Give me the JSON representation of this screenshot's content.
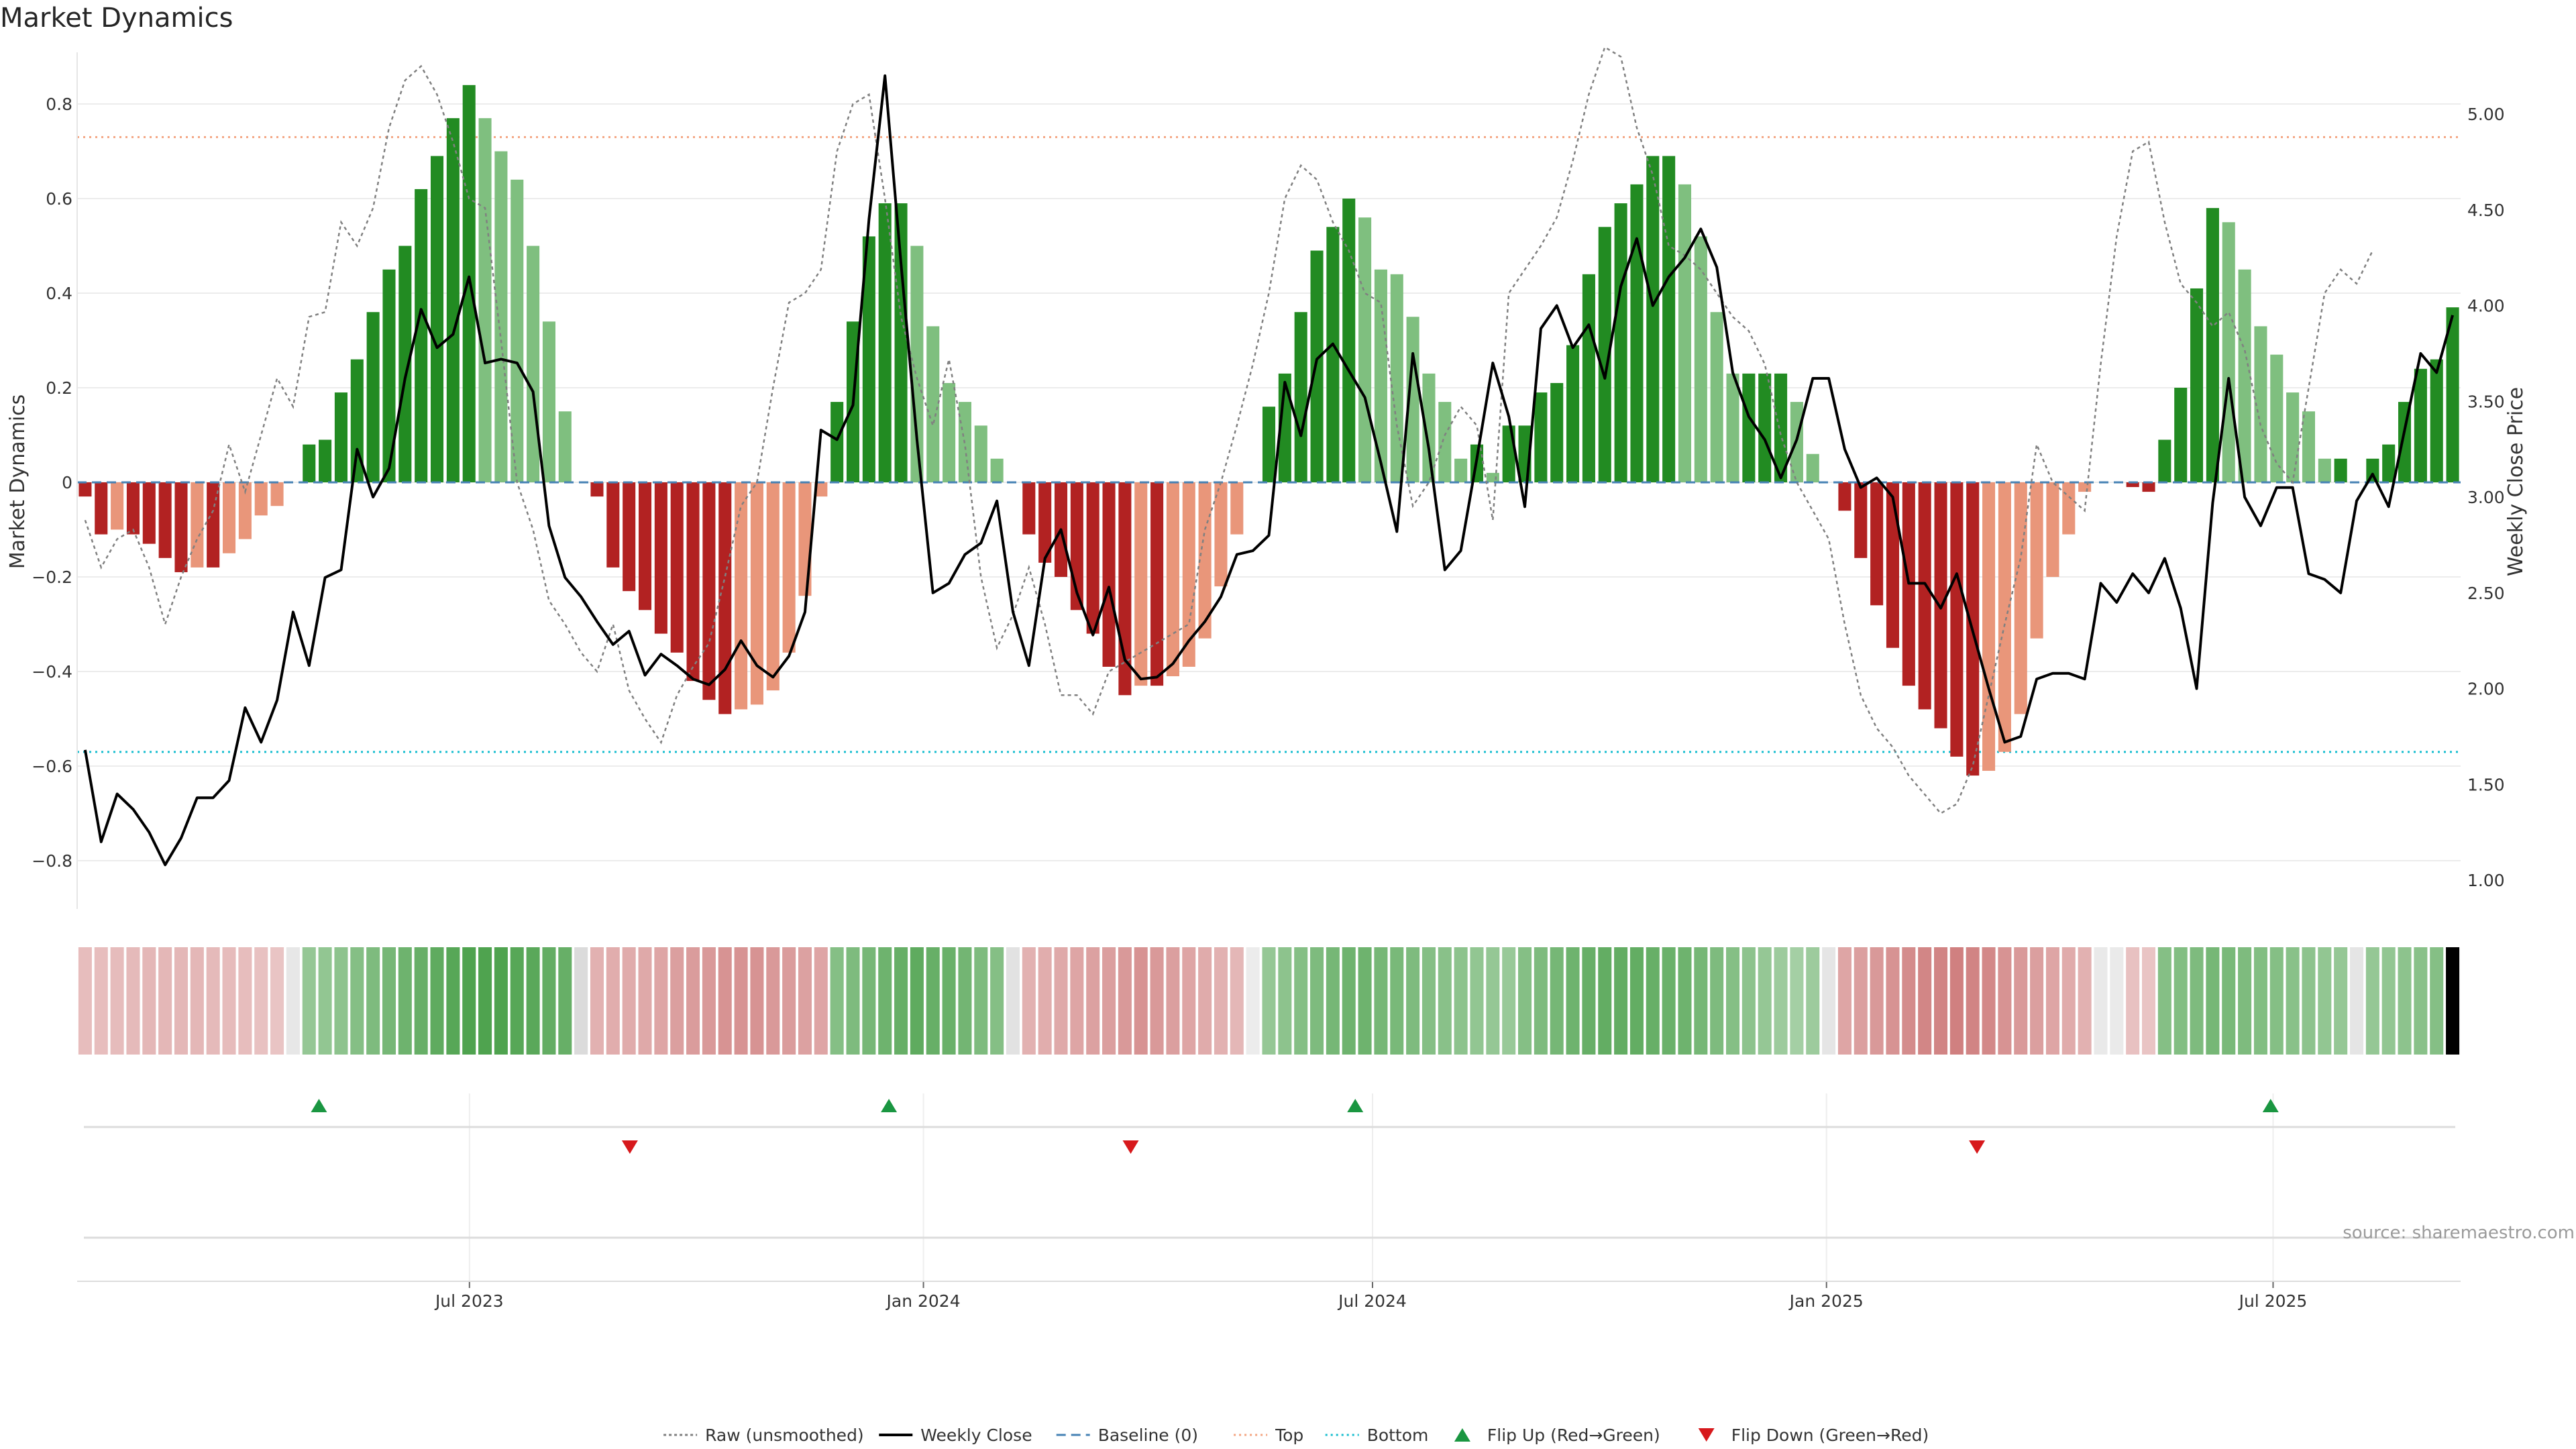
{
  "title": "Market Dynamics",
  "source": "source: sharemaestro.com",
  "chart_data": {
    "type": "bar",
    "title": "Market Dynamics",
    "ylabel_left": "Market Dynamics",
    "ylabel_right": "Weekly Close Price",
    "ylim_left": [
      -0.9,
      0.9
    ],
    "ylim_right": [
      0.85,
      5.3
    ],
    "left_ticks": [
      -0.8,
      -0.6,
      -0.4,
      -0.2,
      0,
      0.2,
      0.4,
      0.6,
      0.8
    ],
    "left_tick_labels": [
      "−0.8",
      "−0.6",
      "−0.4",
      "−0.2",
      "0",
      "0.2",
      "0.4",
      "0.6",
      "0.8"
    ],
    "right_ticks": [
      1.0,
      1.5,
      2.0,
      2.5,
      3.0,
      3.5,
      4.0,
      4.5,
      5.0
    ],
    "right_tick_labels": [
      "1.00",
      "1.50",
      "2.00",
      "2.50",
      "3.00",
      "3.50",
      "4.00",
      "4.50",
      "5.00"
    ],
    "x_start": "2023-01-23",
    "x_end": "2025-09-15",
    "x_ticks": [
      {
        "date": "2023-07-01",
        "label": "Jul 2023"
      },
      {
        "date": "2024-01-01",
        "label": "Jan 2024"
      },
      {
        "date": "2024-07-01",
        "label": "Jul 2024"
      },
      {
        "date": "2025-01-01",
        "label": "Jan 2025"
      },
      {
        "date": "2025-07-01",
        "label": "Jul 2025"
      }
    ],
    "top_threshold": 0.73,
    "bottom_threshold": -0.57,
    "baseline": 0,
    "grid": true,
    "legend_position": "bottom-center",
    "colors": {
      "strong_green": "#228b22",
      "weak_green": "#7fbf7f",
      "strong_red": "#b22222",
      "weak_red": "#e9967a",
      "price": "#000000",
      "raw": "#808080",
      "baseline": "#4682b4",
      "top": "#f4a582",
      "bottom": "#17becf",
      "flip_up": "#1a9641",
      "flip_down": "#d7191c"
    },
    "legend": [
      {
        "label": "Raw (unsmoothed)",
        "style": "dotted-gray"
      },
      {
        "label": "Weekly Close",
        "style": "solid-black"
      },
      {
        "label": "Baseline (0)",
        "style": "dashed-blue"
      },
      {
        "label": "Top",
        "style": "dotted-orange"
      },
      {
        "label": "Bottom",
        "style": "dotted-cyan"
      },
      {
        "label": "Flip Up (Red→Green)",
        "style": "triangle-up-green"
      },
      {
        "label": "Flip Down (Green→Red)",
        "style": "triangle-down-red"
      }
    ],
    "dynamics": [
      -0.03,
      -0.11,
      -0.1,
      -0.11,
      -0.13,
      -0.16,
      -0.19,
      -0.18,
      -0.18,
      -0.15,
      -0.12,
      -0.07,
      -0.05,
      0.0,
      0.08,
      0.09,
      0.19,
      0.26,
      0.36,
      0.45,
      0.5,
      0.62,
      0.69,
      0.77,
      0.84,
      0.77,
      0.7,
      0.64,
      0.5,
      0.34,
      0.15,
      0.0,
      -0.03,
      -0.18,
      -0.23,
      -0.27,
      -0.32,
      -0.36,
      -0.42,
      -0.46,
      -0.49,
      -0.48,
      -0.47,
      -0.44,
      -0.36,
      -0.24,
      -0.03,
      0.17,
      0.34,
      0.52,
      0.59,
      0.59,
      0.5,
      0.33,
      0.21,
      0.17,
      0.12,
      0.05,
      0.0,
      -0.11,
      -0.17,
      -0.2,
      -0.27,
      -0.32,
      -0.39,
      -0.45,
      -0.43,
      -0.43,
      -0.41,
      -0.39,
      -0.33,
      -0.22,
      -0.11,
      0.0,
      0.16,
      0.23,
      0.36,
      0.49,
      0.54,
      0.6,
      0.56,
      0.45,
      0.44,
      0.35,
      0.23,
      0.17,
      0.05,
      0.08,
      0.02,
      0.12,
      0.12,
      0.19,
      0.21,
      0.29,
      0.44,
      0.54,
      0.59,
      0.63,
      0.69,
      0.69,
      0.63,
      0.52,
      0.36,
      0.23,
      0.23,
      0.23,
      0.23,
      0.17,
      0.06,
      0.0,
      -0.06,
      -0.16,
      -0.26,
      -0.35,
      -0.43,
      -0.48,
      -0.52,
      -0.58,
      -0.62,
      -0.61,
      -0.57,
      -0.49,
      -0.33,
      -0.2,
      -0.11,
      -0.02,
      0.0,
      0.0,
      -0.01,
      -0.02,
      0.09,
      0.2,
      0.41,
      0.58,
      0.55,
      0.45,
      0.33,
      0.27,
      0.19,
      0.15,
      0.05,
      0.05,
      0.0,
      0.05,
      0.08,
      0.17,
      0.24,
      0.26,
      0.37
    ],
    "raw": [
      -0.08,
      -0.18,
      -0.12,
      -0.1,
      -0.18,
      -0.3,
      -0.2,
      -0.12,
      -0.06,
      0.08,
      -0.02,
      0.1,
      0.22,
      0.16,
      0.35,
      0.36,
      0.55,
      0.5,
      0.58,
      0.75,
      0.85,
      0.88,
      0.82,
      0.72,
      0.6,
      0.58,
      0.3,
      0.0,
      -0.1,
      -0.25,
      -0.3,
      -0.36,
      -0.4,
      -0.3,
      -0.44,
      -0.5,
      -0.55,
      -0.45,
      -0.39,
      -0.34,
      -0.2,
      -0.05,
      0.0,
      0.2,
      0.38,
      0.4,
      0.45,
      0.7,
      0.8,
      0.82,
      0.6,
      0.35,
      0.22,
      0.12,
      0.26,
      0.08,
      -0.2,
      -0.35,
      -0.28,
      -0.18,
      -0.3,
      -0.45,
      -0.45,
      -0.49,
      -0.4,
      -0.38,
      -0.36,
      -0.34,
      -0.32,
      -0.3,
      -0.1,
      0.0,
      0.12,
      0.25,
      0.4,
      0.6,
      0.67,
      0.64,
      0.55,
      0.49,
      0.4,
      0.38,
      0.12,
      -0.05,
      0.0,
      0.1,
      0.16,
      0.12,
      -0.08,
      0.4,
      0.45,
      0.5,
      0.56,
      0.68,
      0.82,
      0.92,
      0.9,
      0.75,
      0.65,
      0.5,
      0.48,
      0.45,
      0.4,
      0.35,
      0.32,
      0.25,
      0.1,
      0.0,
      -0.06,
      -0.12,
      -0.3,
      -0.45,
      -0.52,
      -0.56,
      -0.62,
      -0.66,
      -0.7,
      -0.68,
      -0.6,
      -0.45,
      -0.3,
      -0.16,
      0.08,
      0.0,
      -0.03,
      -0.06,
      0.25,
      0.52,
      0.7,
      0.72,
      0.55,
      0.42,
      0.38,
      0.33,
      0.36,
      0.28,
      0.12,
      0.04,
      0.0,
      0.2,
      0.4,
      0.45,
      0.42,
      0.49
    ],
    "close": [
      1.68,
      1.2,
      1.45,
      1.37,
      1.25,
      1.08,
      1.22,
      1.43,
      1.43,
      1.52,
      1.9,
      1.72,
      1.94,
      2.4,
      2.12,
      2.58,
      2.62,
      3.25,
      3.0,
      3.15,
      3.62,
      3.98,
      3.78,
      3.85,
      4.15,
      3.7,
      3.72,
      3.7,
      3.55,
      2.85,
      2.58,
      2.48,
      2.35,
      2.23,
      2.3,
      2.07,
      2.18,
      2.12,
      2.05,
      2.02,
      2.1,
      2.25,
      2.12,
      2.06,
      2.17,
      2.4,
      3.35,
      3.3,
      3.48,
      4.45,
      5.2,
      4.22,
      3.3,
      2.5,
      2.55,
      2.7,
      2.76,
      2.98,
      2.4,
      2.12,
      2.68,
      2.83,
      2.5,
      2.28,
      2.53,
      2.15,
      2.05,
      2.06,
      2.13,
      2.25,
      2.35,
      2.48,
      2.7,
      2.72,
      2.8,
      3.6,
      3.32,
      3.72,
      3.8,
      3.66,
      3.52,
      3.18,
      2.82,
      3.75,
      3.25,
      2.62,
      2.72,
      3.2,
      3.7,
      3.42,
      2.95,
      3.88,
      4.0,
      3.78,
      3.9,
      3.62,
      4.1,
      4.35,
      4.0,
      4.15,
      4.25,
      4.4,
      4.2,
      3.65,
      3.42,
      3.3,
      3.1,
      3.3,
      3.62,
      3.62,
      3.25,
      3.05,
      3.1,
      3.0,
      2.55,
      2.55,
      2.42,
      2.6,
      2.3,
      2.0,
      1.72,
      1.75,
      2.05,
      2.08,
      2.08,
      2.05,
      2.55,
      2.45,
      2.6,
      2.5,
      2.68,
      2.42,
      2.0,
      2.97,
      3.62,
      3.0,
      2.85,
      3.05,
      3.05,
      2.6,
      2.57,
      2.5,
      2.98,
      3.12,
      2.95,
      3.35,
      3.75,
      3.65,
      3.95
    ],
    "regime_intensity": [
      0.25,
      0.25,
      0.26,
      0.28,
      0.3,
      0.3,
      0.3,
      0.3,
      0.28,
      0.27,
      0.25,
      0.22,
      0.2,
      0.35,
      0.4,
      0.42,
      0.45,
      0.5,
      0.55,
      0.6,
      0.65,
      0.7,
      0.75,
      0.8,
      0.85,
      0.85,
      0.85,
      0.8,
      0.78,
      0.72,
      0.7,
      0.65,
      0.35,
      0.38,
      0.4,
      0.42,
      0.45,
      0.5,
      0.52,
      0.55,
      0.6,
      0.6,
      0.6,
      0.55,
      0.52,
      0.48,
      0.45,
      0.5,
      0.55,
      0.6,
      0.65,
      0.7,
      0.75,
      0.7,
      0.68,
      0.62,
      0.55,
      0.5,
      0.48,
      0.35,
      0.38,
      0.42,
      0.45,
      0.48,
      0.5,
      0.55,
      0.6,
      0.55,
      0.5,
      0.45,
      0.4,
      0.35,
      0.3,
      0.2,
      0.4,
      0.45,
      0.5,
      0.55,
      0.6,
      0.65,
      0.65,
      0.6,
      0.58,
      0.55,
      0.5,
      0.48,
      0.45,
      0.42,
      0.4,
      0.38,
      0.5,
      0.55,
      0.6,
      0.65,
      0.7,
      0.72,
      0.72,
      0.72,
      0.7,
      0.68,
      0.65,
      0.6,
      0.55,
      0.5,
      0.45,
      0.4,
      0.35,
      0.3,
      0.35,
      0.4,
      0.45,
      0.5,
      0.55,
      0.6,
      0.65,
      0.7,
      0.72,
      0.75,
      0.72,
      0.68,
      0.6,
      0.55,
      0.5,
      0.45,
      0.4,
      0.35,
      0.28,
      0.25,
      0.22,
      0.2,
      0.5,
      0.52,
      0.55,
      0.6,
      0.58,
      0.55,
      0.52,
      0.5,
      0.48,
      0.45,
      0.42,
      0.4,
      0.38,
      0.4,
      0.42,
      0.45,
      0.48,
      0.5
    ],
    "flip_up_dates": [
      "2023-05-01",
      "2023-12-18",
      "2024-06-24",
      "2025-06-30"
    ],
    "flip_down_dates": [
      "2023-09-04",
      "2024-03-25",
      "2025-03-03"
    ]
  }
}
